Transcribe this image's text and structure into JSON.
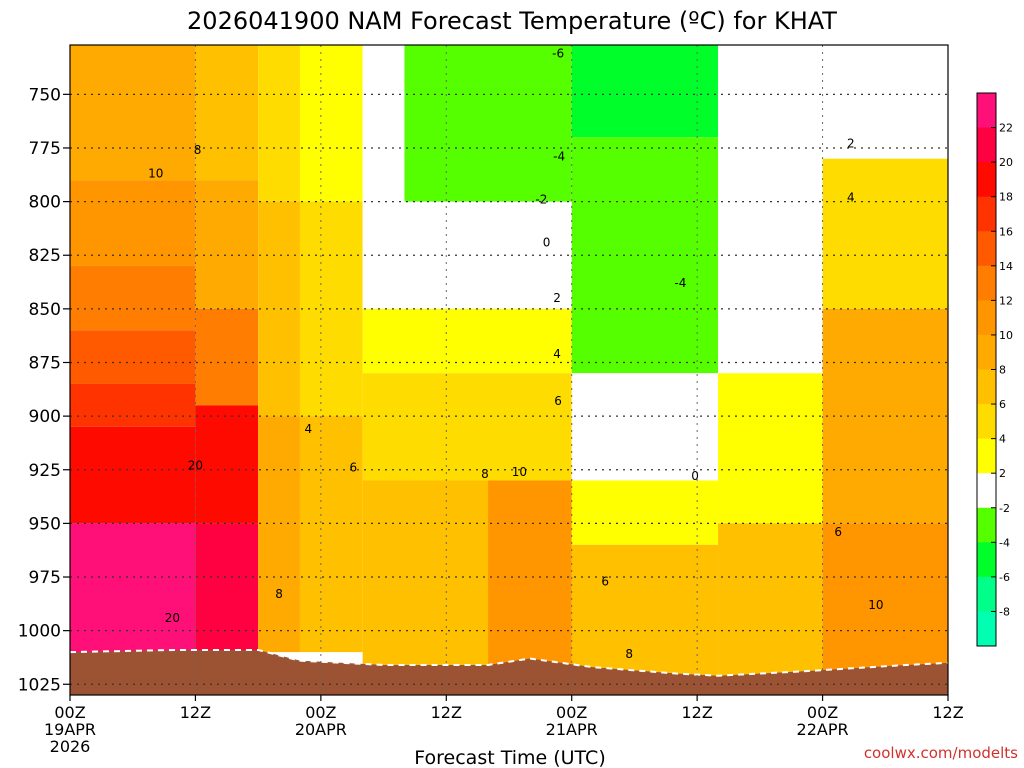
{
  "chart_data": {
    "type": "heatmap",
    "title": "2026041900 NAM Forecast Temperature (ºC) for KHAT",
    "xlabel": "Forecast Time (UTC)",
    "ylabel": "",
    "x_ticks": [
      {
        "hour": 0,
        "label": "00Z",
        "date": "19APR",
        "year": "2026"
      },
      {
        "hour": 12,
        "label": "12Z",
        "date": "",
        "year": ""
      },
      {
        "hour": 24,
        "label": "00Z",
        "date": "20APR",
        "year": ""
      },
      {
        "hour": 36,
        "label": "12Z",
        "date": "",
        "year": ""
      },
      {
        "hour": 48,
        "label": "00Z",
        "date": "21APR",
        "year": ""
      },
      {
        "hour": 60,
        "label": "12Z",
        "date": "",
        "year": ""
      },
      {
        "hour": 72,
        "label": "00Z",
        "date": "22APR",
        "year": ""
      },
      {
        "hour": 84,
        "label": "12Z",
        "date": "",
        "year": ""
      }
    ],
    "xlim": [
      0,
      84
    ],
    "y_ticks": [
      750,
      775,
      800,
      825,
      850,
      875,
      900,
      925,
      950,
      975,
      1000,
      1025
    ],
    "ylim": [
      1030,
      727
    ],
    "y_axis": "pressure (hPa), inverted",
    "grid": true,
    "colorbar": {
      "labels": [
        "22",
        "20",
        "18",
        "16",
        "14",
        "12",
        "10",
        "8",
        "6",
        "4",
        "2",
        "-2",
        "-4",
        "-6",
        "-8"
      ],
      "bins": [
        {
          "range": [
            22,
            24
          ],
          "color": "#ff0f78"
        },
        {
          "range": [
            20,
            22
          ],
          "color": "#ff0040"
        },
        {
          "range": [
            18,
            20
          ],
          "color": "#ff0a00"
        },
        {
          "range": [
            16,
            18
          ],
          "color": "#ff3300"
        },
        {
          "range": [
            14,
            16
          ],
          "color": "#ff5a00"
        },
        {
          "range": [
            12,
            14
          ],
          "color": "#ff7d00"
        },
        {
          "range": [
            10,
            12
          ],
          "color": "#ff9600"
        },
        {
          "range": [
            8,
            10
          ],
          "color": "#ffaa00"
        },
        {
          "range": [
            6,
            8
          ],
          "color": "#ffc000"
        },
        {
          "range": [
            4,
            6
          ],
          "color": "#ffdc00"
        },
        {
          "range": [
            2,
            4
          ],
          "color": "#ffff00"
        },
        {
          "range": [
            -2,
            2
          ],
          "color": "#ffffff"
        },
        {
          "range": [
            -4,
            -2
          ],
          "color": "#55ff00"
        },
        {
          "range": [
            -6,
            -4
          ],
          "color": "#00ff2a"
        },
        {
          "range": [
            -8,
            -6
          ],
          "color": "#00ff88"
        },
        {
          "range": [
            -10,
            -8
          ],
          "color": "#00ffb0"
        }
      ]
    },
    "cells": [
      {
        "h0": 0,
        "h1": 12,
        "p0": 727,
        "p1": 790,
        "temp": 9
      },
      {
        "h0": 0,
        "h1": 12,
        "p0": 790,
        "p1": 830,
        "temp": 11
      },
      {
        "h0": 0,
        "h1": 12,
        "p0": 830,
        "p1": 860,
        "temp": 13
      },
      {
        "h0": 0,
        "h1": 12,
        "p0": 860,
        "p1": 885,
        "temp": 15
      },
      {
        "h0": 0,
        "h1": 12,
        "p0": 885,
        "p1": 905,
        "temp": 17
      },
      {
        "h0": 0,
        "h1": 12,
        "p0": 905,
        "p1": 950,
        "temp": 19
      },
      {
        "h0": 0,
        "h1": 12,
        "p0": 950,
        "p1": 1010,
        "temp": 22
      },
      {
        "h0": 12,
        "h1": 18,
        "p0": 727,
        "p1": 790,
        "temp": 7
      },
      {
        "h0": 12,
        "h1": 18,
        "p0": 790,
        "p1": 850,
        "temp": 9
      },
      {
        "h0": 12,
        "h1": 18,
        "p0": 850,
        "p1": 895,
        "temp": 13
      },
      {
        "h0": 12,
        "h1": 18,
        "p0": 895,
        "p1": 950,
        "temp": 19
      },
      {
        "h0": 12,
        "h1": 18,
        "p0": 950,
        "p1": 1010,
        "temp": 21
      },
      {
        "h0": 18,
        "h1": 22,
        "p0": 727,
        "p1": 800,
        "temp": 5
      },
      {
        "h0": 18,
        "h1": 22,
        "p0": 800,
        "p1": 900,
        "temp": 7
      },
      {
        "h0": 18,
        "h1": 22,
        "p0": 900,
        "p1": 1010,
        "temp": 9
      },
      {
        "h0": 22,
        "h1": 28,
        "p0": 727,
        "p1": 800,
        "temp": 3
      },
      {
        "h0": 22,
        "h1": 28,
        "p0": 800,
        "p1": 900,
        "temp": 5
      },
      {
        "h0": 22,
        "h1": 28,
        "p0": 900,
        "p1": 1010,
        "temp": 7
      },
      {
        "h0": 28,
        "h1": 48,
        "p0": 727,
        "p1": 800,
        "temp": 1
      },
      {
        "h0": 28,
        "h1": 48,
        "p0": 800,
        "p1": 850,
        "temp": 1
      },
      {
        "h0": 28,
        "h1": 48,
        "p0": 850,
        "p1": 880,
        "temp": 3
      },
      {
        "h0": 28,
        "h1": 48,
        "p0": 880,
        "p1": 930,
        "temp": 5
      },
      {
        "h0": 28,
        "h1": 48,
        "p0": 930,
        "p1": 1020,
        "temp": 7
      },
      {
        "h0": 40,
        "h1": 48,
        "p0": 930,
        "p1": 1020,
        "temp": 11
      },
      {
        "h0": 32,
        "h1": 48,
        "p0": 727,
        "p1": 800,
        "temp": -3
      },
      {
        "h0": 48,
        "h1": 62,
        "p0": 727,
        "p1": 770,
        "temp": -5
      },
      {
        "h0": 48,
        "h1": 62,
        "p0": 770,
        "p1": 880,
        "temp": -3
      },
      {
        "h0": 48,
        "h1": 62,
        "p0": 880,
        "p1": 930,
        "temp": 1
      },
      {
        "h0": 48,
        "h1": 62,
        "p0": 930,
        "p1": 960,
        "temp": 3
      },
      {
        "h0": 48,
        "h1": 62,
        "p0": 960,
        "p1": 1022,
        "temp": 7
      },
      {
        "h0": 62,
        "h1": 72,
        "p0": 727,
        "p1": 760,
        "temp": 1
      },
      {
        "h0": 62,
        "h1": 72,
        "p0": 760,
        "p1": 880,
        "temp": 1
      },
      {
        "h0": 62,
        "h1": 72,
        "p0": 880,
        "p1": 950,
        "temp": 3
      },
      {
        "h0": 62,
        "h1": 72,
        "p0": 950,
        "p1": 1025,
        "temp": 7
      },
      {
        "h0": 72,
        "h1": 84,
        "p0": 727,
        "p1": 780,
        "temp": 1
      },
      {
        "h0": 72,
        "h1": 84,
        "p0": 780,
        "p1": 850,
        "temp": 5
      },
      {
        "h0": 72,
        "h1": 84,
        "p0": 850,
        "p1": 950,
        "temp": 9
      },
      {
        "h0": 72,
        "h1": 84,
        "p0": 950,
        "p1": 1022,
        "temp": 11
      }
    ],
    "contour_labels": [
      {
        "hour": 12.2,
        "p": 776,
        "text": "8"
      },
      {
        "hour": 8.2,
        "p": 787,
        "text": "10"
      },
      {
        "hour": 12.0,
        "p": 923,
        "text": "20"
      },
      {
        "hour": 9.8,
        "p": 994,
        "text": "20"
      },
      {
        "hour": 20.0,
        "p": 983,
        "text": "8"
      },
      {
        "hour": 22.8,
        "p": 906,
        "text": "4"
      },
      {
        "hour": 27.1,
        "p": 924,
        "text": "6"
      },
      {
        "hour": 39.7,
        "p": 927,
        "text": "8"
      },
      {
        "hour": 43.0,
        "p": 926,
        "text": "10"
      },
      {
        "hour": 45.6,
        "p": 819,
        "text": "0"
      },
      {
        "hour": 46.6,
        "p": 845,
        "text": "2"
      },
      {
        "hour": 46.6,
        "p": 871,
        "text": "4"
      },
      {
        "hour": 46.7,
        "p": 893,
        "text": "6"
      },
      {
        "hour": 51.2,
        "p": 977,
        "text": "6"
      },
      {
        "hour": 53.5,
        "p": 1011,
        "text": "8"
      },
      {
        "hour": 59.8,
        "p": 928,
        "text": "0"
      },
      {
        "hour": 45.1,
        "p": 799,
        "text": "-2"
      },
      {
        "hour": 46.8,
        "p": 779,
        "text": "-4"
      },
      {
        "hour": 46.7,
        "p": 731,
        "text": "-6"
      },
      {
        "hour": 58.4,
        "p": 838,
        "text": "-4"
      },
      {
        "hour": 74.7,
        "p": 773,
        "text": "2"
      },
      {
        "hour": 74.7,
        "p": 798,
        "text": "4"
      },
      {
        "hour": 73.5,
        "p": 954,
        "text": "6"
      },
      {
        "hour": 77.1,
        "p": 988,
        "text": "10"
      }
    ],
    "ground": [
      {
        "hour": 0,
        "p": 1010
      },
      {
        "hour": 10,
        "p": 1009
      },
      {
        "hour": 18,
        "p": 1009
      },
      {
        "hour": 22,
        "p": 1014
      },
      {
        "hour": 30,
        "p": 1016
      },
      {
        "hour": 40,
        "p": 1016
      },
      {
        "hour": 44,
        "p": 1013
      },
      {
        "hour": 50,
        "p": 1017
      },
      {
        "hour": 58,
        "p": 1020
      },
      {
        "hour": 62,
        "p": 1021
      },
      {
        "hour": 70,
        "p": 1019
      },
      {
        "hour": 80,
        "p": 1016
      },
      {
        "hour": 84,
        "p": 1015
      }
    ],
    "source": "coolwx.com/modelts"
  }
}
